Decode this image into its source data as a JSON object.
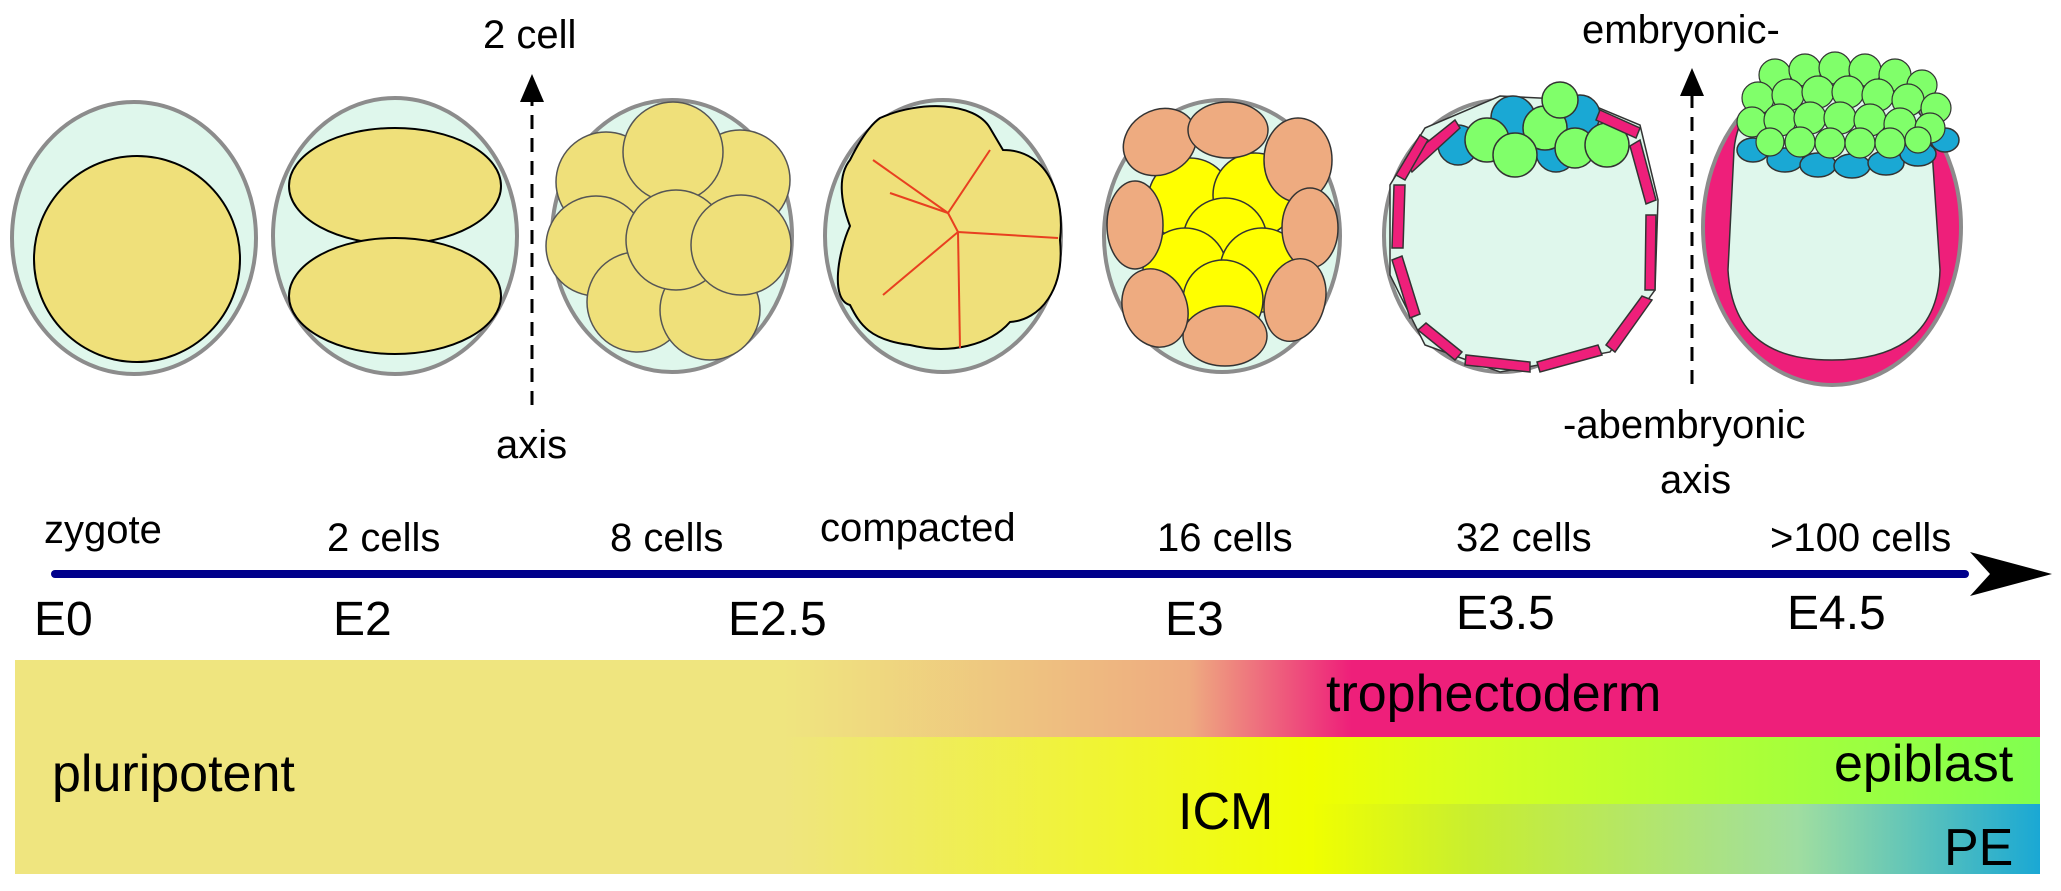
{
  "axis_labels": {
    "two_cell_top": "2 cell",
    "two_cell_bottom": "axis",
    "embryonic_top": "embryonic-",
    "embryonic_bottom_1": "-abembryonic",
    "embryonic_bottom_2": "axis"
  },
  "stages": [
    "zygote",
    "2 cells",
    "8 cells",
    "compacted",
    "16 cells",
    "32 cells",
    ">100 cells"
  ],
  "days": [
    "E0",
    "E2",
    "E2.5",
    "E3",
    "E3.5",
    "E4.5"
  ],
  "fates": {
    "pluripotent": "pluripotent",
    "trophectoderm": "trophectoderm",
    "icm": "ICM",
    "epiblast": "epiblast",
    "pe": "PE"
  },
  "colors": {
    "zona": "#dff7ec",
    "zona_border": "#8c8c8c",
    "blastomere": "#efe07a",
    "outer_cell": "#eeab80",
    "inner_cell": "#ffff00",
    "trophectoderm": "#ee1f7a",
    "epiblast": "#80ff6a",
    "pe": "#1aa8d4",
    "timeline": "#00008b",
    "compaction_line": "#e84020"
  }
}
